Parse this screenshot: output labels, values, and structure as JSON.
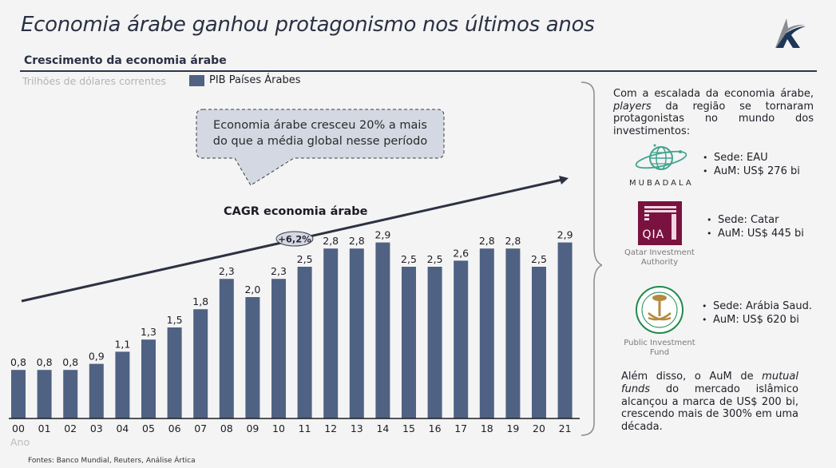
{
  "header": {
    "title": "Economia árabe ganhou protagonismo nos últimos anos",
    "logo": "artica-logo-icon"
  },
  "chart_section": {
    "subtitle": "Crescimento da economia árabe",
    "units": "Trilhões de dólares correntes",
    "callout": "Economia árabe cresceu 20% a mais do que a média global nesse período",
    "callout_line1": "Economia árabe cresceu 20% a mais",
    "callout_line2": "do que a média global nesse período",
    "cagr_label": "CAGR economia árabe",
    "cagr_value": "+6,2%",
    "xlabel": "Ano",
    "sources": "Fontes: Banco Mundial, Reuters, Análise Ártica"
  },
  "chart_data": {
    "type": "bar",
    "title": "Crescimento da economia árabe",
    "ylabel": "Trilhões de dólares correntes",
    "xlabel": "Ano",
    "legend": [
      "PIB Países Árabes"
    ],
    "legend_position": "top-left",
    "categories": [
      "00",
      "01",
      "02",
      "03",
      "04",
      "05",
      "06",
      "07",
      "08",
      "09",
      "10",
      "11",
      "12",
      "13",
      "14",
      "15",
      "16",
      "17",
      "18",
      "19",
      "20",
      "21"
    ],
    "series": [
      {
        "name": "PIB Países Árabes",
        "values": [
          0.8,
          0.8,
          0.8,
          0.9,
          1.1,
          1.3,
          1.5,
          1.8,
          2.3,
          2.0,
          2.3,
          2.5,
          2.8,
          2.8,
          2.9,
          2.5,
          2.5,
          2.6,
          2.8,
          2.8,
          2.5,
          2.9
        ],
        "labels": [
          "0,8",
          "0,8",
          "0,8",
          "0,9",
          "1,1",
          "1,3",
          "1,5",
          "1,8",
          "2,3",
          "2,0",
          "2,3",
          "2,5",
          "2,8",
          "2,8",
          "2,9",
          "2,5",
          "2,5",
          "2,6",
          "2,8",
          "2,8",
          "2,5",
          "2,9"
        ]
      }
    ],
    "ylim": [
      0,
      3.4
    ],
    "grid": false,
    "annotations": [
      "CAGR economia árabe",
      "+6,2%",
      "Economia árabe cresceu 20% a mais do que a média global nesse período"
    ],
    "colors": {
      "bar": "#4f6283",
      "axis": "#1c1c24"
    }
  },
  "side_panel": {
    "intro_html_parts": {
      "line_a": "Com a escalada da economia árabe,",
      "italic": "players",
      "line_b": " da região se tornaram protagonistas no mundo dos investimentos:"
    },
    "funds": [
      {
        "name": "MUBADALA",
        "logo": "mubadala-globe-icon",
        "bullets": [
          "Sede: EAU",
          "AuM: US$ 276 bi"
        ]
      },
      {
        "name": "Qatar Investment Authority",
        "name_line1": "Qatar Investment",
        "name_line2": "Authority",
        "logo_text": "QIA",
        "logo": "qia-logo-icon",
        "bullets": [
          "Sede: Catar",
          "AuM: US$ 445 bi"
        ]
      },
      {
        "name": "Public Investment Fund",
        "name_line1": "Public Investment",
        "name_line2": "Fund",
        "logo": "pif-emblem-icon",
        "bullets": [
          "Sede: Arábia Saud.",
          "AuM: US$ 620 bi"
        ]
      }
    ],
    "outro": {
      "before": "Além disso, o AuM de ",
      "italic": "mutual funds",
      "after": " do mercado islâmico alcançou a marca de US$ 200 bi, crescendo mais de 300% em uma década."
    }
  },
  "colors": {
    "title": "#2a3045",
    "bar": "#4f6283",
    "muted": "#b4b4b4",
    "mubadala": "#3fa48f",
    "qia": "#7a1240",
    "pif": "#1f8a4c",
    "pif_gold": "#b48a3c"
  }
}
